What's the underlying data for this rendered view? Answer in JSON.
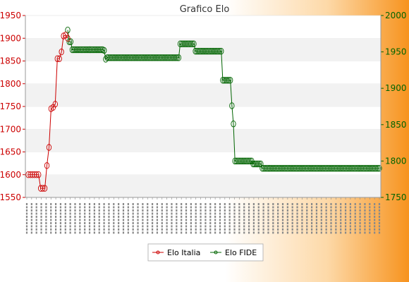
{
  "chart_data": {
    "type": "line",
    "title": "Grafico Elo",
    "left_axis": {
      "ylim": [
        1550,
        1950
      ],
      "ticks": [
        1550,
        1600,
        1650,
        1700,
        1750,
        1800,
        1850,
        1900,
        1950
      ],
      "color": "#cc0000"
    },
    "right_axis": {
      "ylim": [
        1750,
        2000
      ],
      "ticks": [
        1750,
        1800,
        1850,
        1900,
        1950,
        2000
      ],
      "color": "#006400"
    },
    "grid": "horizontal bands",
    "legend_position": "bottom-center",
    "series": [
      {
        "name": "Elo Italia",
        "axis": "left",
        "color": "#cc0000",
        "values": [
          1600,
          1600,
          1600,
          1600,
          1600,
          1600,
          1570,
          1570,
          1570,
          1620,
          1660,
          1745,
          1748,
          1755,
          1855,
          1855,
          1870,
          1905,
          1907,
          1900
        ]
      },
      {
        "name": "Elo FIDE",
        "axis": "right",
        "color": "#006400",
        "values": [
          1980,
          1964,
          1964,
          1953,
          1953,
          1953,
          1953,
          1953,
          1953,
          1953,
          1953,
          1953,
          1953,
          1953,
          1953,
          1953,
          1953,
          1953,
          1953,
          1953,
          1953,
          1953,
          1953,
          1953,
          1952,
          1940,
          1942,
          1942,
          1942,
          1942,
          1942,
          1942,
          1942,
          1942,
          1942,
          1942,
          1942,
          1942,
          1942,
          1942,
          1942,
          1942,
          1942,
          1942,
          1942,
          1942,
          1942,
          1942,
          1942,
          1942,
          1942,
          1942,
          1942,
          1942,
          1942,
          1942,
          1942,
          1942,
          1942,
          1942,
          1942,
          1942,
          1942,
          1942,
          1942,
          1942,
          1942,
          1942,
          1942,
          1942,
          1942,
          1942,
          1942,
          1942,
          1961,
          1961,
          1961,
          1961,
          1961,
          1961,
          1961,
          1961,
          1961,
          1961,
          1951,
          1951,
          1951,
          1951,
          1951,
          1951,
          1951,
          1951,
          1951,
          1951,
          1951,
          1951,
          1951,
          1951,
          1951,
          1951,
          1951,
          1951,
          1911,
          1911,
          1911,
          1911,
          1911,
          1911,
          1876,
          1851,
          1800,
          1800,
          1800,
          1800,
          1800,
          1800,
          1800,
          1800,
          1800,
          1800,
          1800,
          1800,
          1796,
          1796,
          1796,
          1796,
          1796,
          1796,
          1790,
          1790,
          1790,
          1790,
          1790,
          1790,
          1790,
          1790,
          1790,
          1790,
          1790,
          1790,
          1790,
          1790,
          1790,
          1790,
          1790,
          1790,
          1790,
          1790,
          1790,
          1790,
          1790,
          1790,
          1790,
          1790,
          1790,
          1790,
          1790,
          1790,
          1790,
          1790,
          1790,
          1790,
          1790,
          1790,
          1790,
          1790,
          1790,
          1790,
          1790,
          1790,
          1790,
          1790,
          1790,
          1790,
          1790,
          1790,
          1790,
          1790,
          1790,
          1790,
          1790,
          1790,
          1790,
          1790,
          1790,
          1790,
          1790,
          1790,
          1790,
          1790,
          1790,
          1790,
          1790,
          1790,
          1790,
          1790,
          1790,
          1790,
          1790,
          1790,
          1790,
          1790,
          1790,
          1790,
          1790,
          1790
        ]
      }
    ],
    "x_labels_count": 74
  }
}
